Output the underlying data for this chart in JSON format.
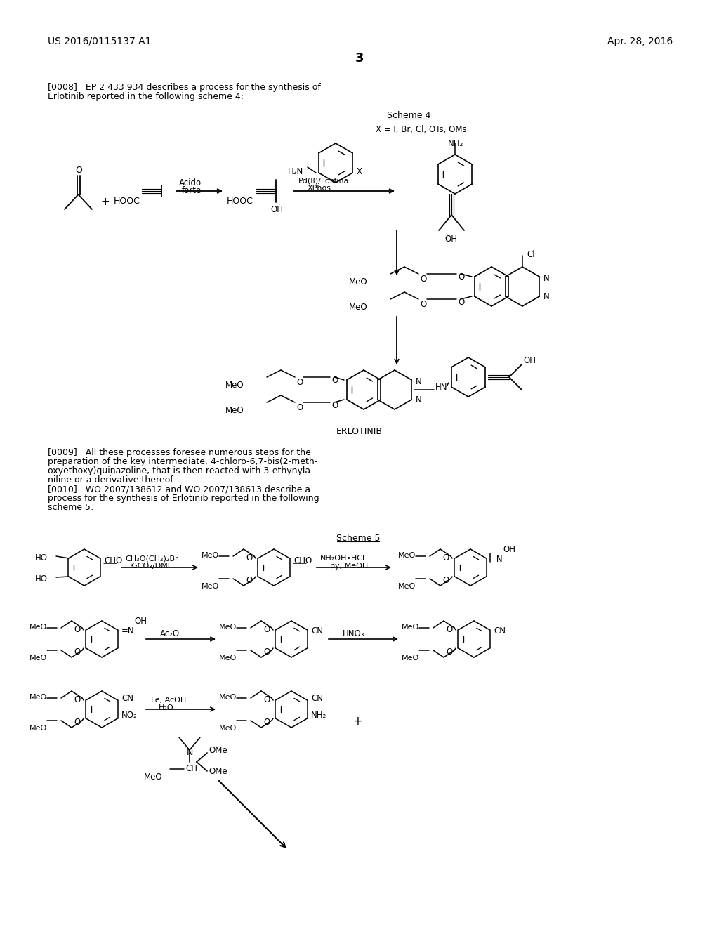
{
  "bg": "#ffffff",
  "tc": "#000000",
  "hdr_left": "US 2016/0115137 A1",
  "hdr_right": "Apr. 28, 2016",
  "page": "3",
  "p0008_1": "[0008]   EP 2 433 934 describes a process for the synthesis of",
  "p0008_2": "Erlotinib reported in the following scheme 4:",
  "sch4": "Scheme 4",
  "xlbl": "X = I, Br, Cl, OTs, OMs",
  "acido1": "Acido",
  "acido2": "forte",
  "pd1": "Pd(II)/Fosfina",
  "pd2": "XPhos",
  "erlotinib": "ERLOTINIB",
  "p0009": [
    "[0009]   All these processes foresee numerous steps for the",
    "preparation of the key intermediate, 4-chloro-6,7-bis(2-meth-",
    "oxyethoxy)quinazoline, that is then reacted with 3-ethynyla-",
    "niline or a derivative thereof.",
    "[0010]   WO 2007/138612 and WO 2007/138613 describe a",
    "process for the synthesis of Erlotinib reported in the following",
    "scheme 5:"
  ],
  "sch5": "Scheme 5",
  "ch3obr": "CH₃O(CH₂)₂Br",
  "k2co3": "K₂CO₃/DMF",
  "nh2ohHCl": "NH₂OH•HCl",
  "pyMeOH": "py, MeOH",
  "ac2o": "Ac₂O",
  "hno3": "HNO₃",
  "feAcOH": "Fe, AcOH",
  "h2o": "H₂O"
}
